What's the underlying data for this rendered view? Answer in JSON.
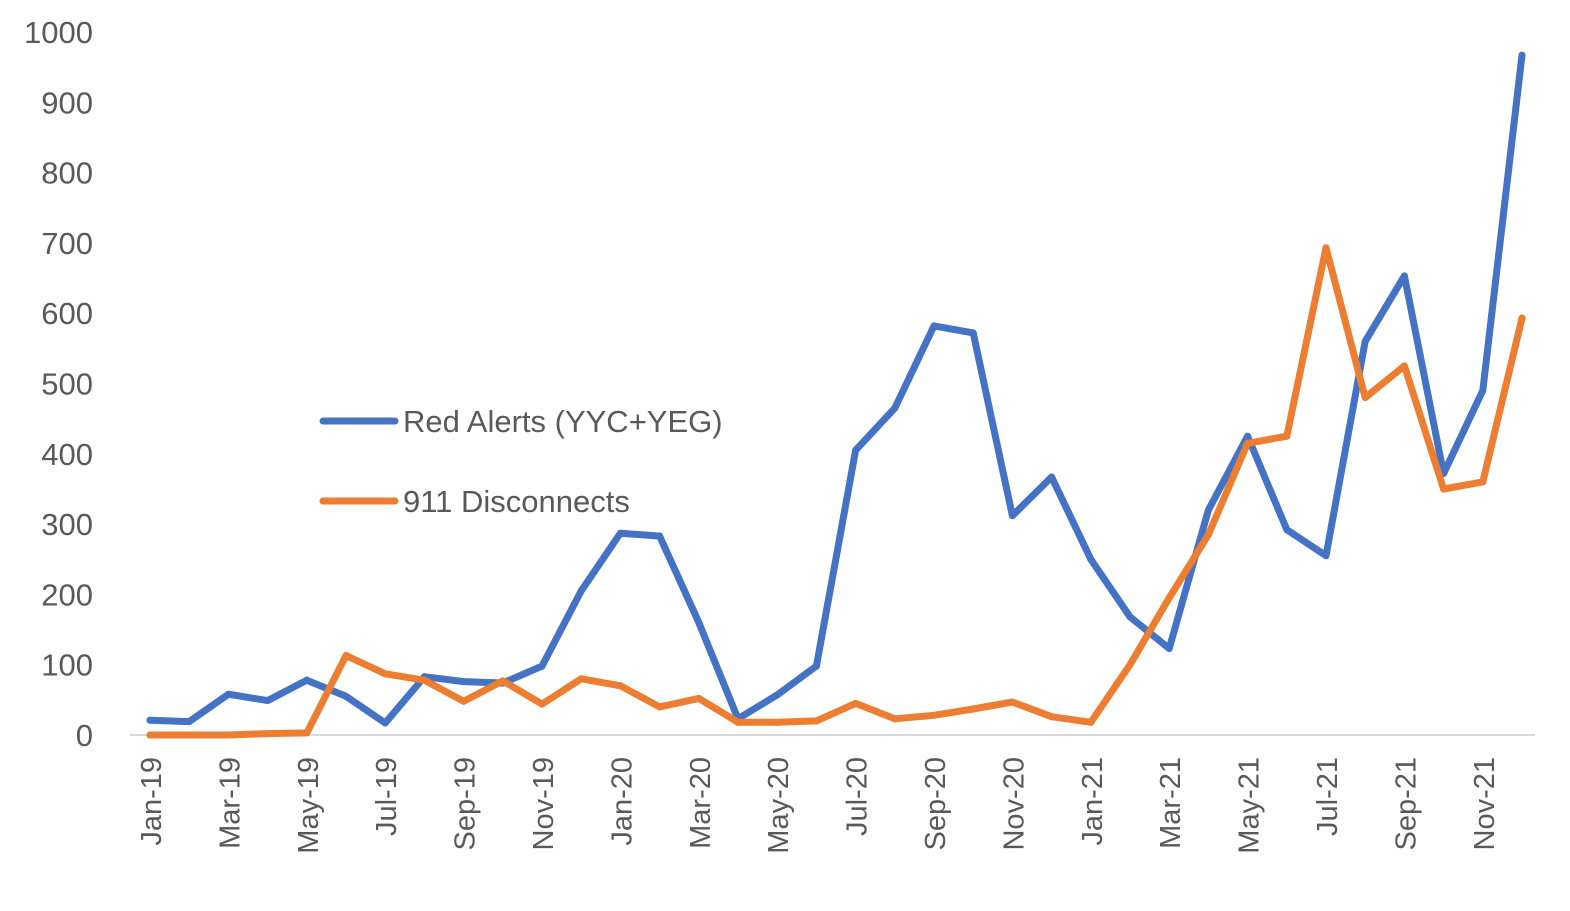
{
  "chart_data": {
    "type": "line",
    "title": "",
    "xlabel": "",
    "ylabel": "",
    "ylim": [
      0,
      1000
    ],
    "yticks": [
      0,
      100,
      200,
      300,
      400,
      500,
      600,
      700,
      800,
      900,
      1000
    ],
    "grid": false,
    "legend_position": "center-left",
    "x": [
      "Jan-19",
      "Feb-19",
      "Mar-19",
      "Apr-19",
      "May-19",
      "Jun-19",
      "Jul-19",
      "Aug-19",
      "Sep-19",
      "Oct-19",
      "Nov-19",
      "Dec-19",
      "Jan-20",
      "Feb-20",
      "Mar-20",
      "Apr-20",
      "May-20",
      "Jun-20",
      "Jul-20",
      "Aug-20",
      "Sep-20",
      "Oct-20",
      "Nov-20",
      "Dec-20",
      "Jan-21",
      "Feb-21",
      "Mar-21",
      "Apr-21",
      "May-21",
      "Jun-21",
      "Jul-21",
      "Aug-21",
      "Sep-21",
      "Oct-21",
      "Nov-21",
      "Dec-21"
    ],
    "x_tick_labels": [
      "Jan-19",
      "Mar-19",
      "May-19",
      "Jul-19",
      "Sep-19",
      "Nov-19",
      "Jan-20",
      "Mar-20",
      "May-20",
      "Jul-20",
      "Sep-20",
      "Nov-20",
      "Jan-21",
      "Mar-21",
      "May-21",
      "Jul-21",
      "Sep-21",
      "Nov-21"
    ],
    "series": [
      {
        "name": "Red Alerts (YYC+YEG)",
        "color": "#4472C4",
        "values": [
          21,
          19,
          58,
          49,
          78,
          55,
          17,
          83,
          76,
          74,
          98,
          205,
          287,
          283,
          160,
          23,
          57,
          98,
          405,
          465,
          582,
          572,
          312,
          367,
          250,
          168,
          123,
          320,
          425,
          292,
          255,
          560,
          653,
          372,
          490,
          967
        ]
      },
      {
        "name": "911 Disconnects",
        "color": "#ED7D31",
        "values": [
          0,
          0,
          0,
          2,
          3,
          113,
          87,
          78,
          48,
          77,
          44,
          80,
          70,
          40,
          52,
          18,
          18,
          20,
          45,
          23,
          28,
          37,
          47,
          26,
          18,
          100,
          195,
          285,
          415,
          425,
          693,
          480,
          525,
          350,
          360,
          593
        ]
      }
    ]
  }
}
